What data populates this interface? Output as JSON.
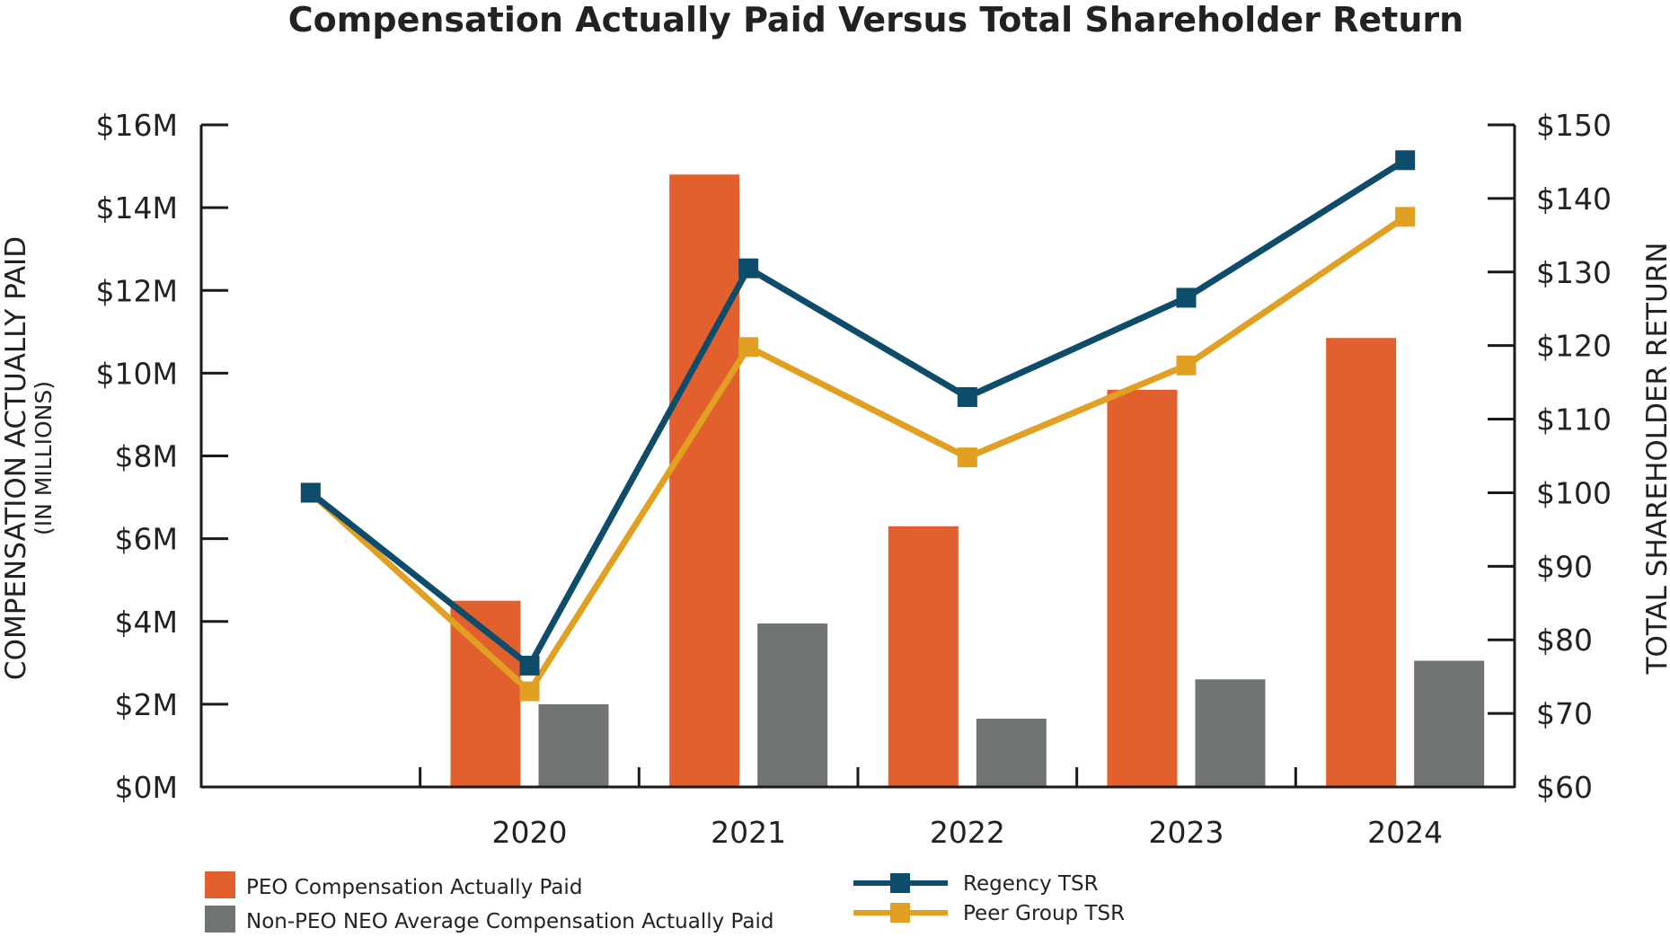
{
  "chart_data": {
    "type": "bar",
    "title": "Compensation Actually Paid Versus Total Shareholder Return",
    "x_categories": [
      "",
      "2020",
      "2021",
      "2022",
      "2023",
      "2024"
    ],
    "y_left": {
      "label": "COMPENSATION ACTUALLY PAID",
      "sublabel": "(IN MILLIONS)",
      "range": [
        0,
        16
      ],
      "ticks": [
        0,
        2,
        4,
        6,
        8,
        10,
        12,
        14,
        16
      ],
      "tick_labels": [
        "$0M",
        "$2M",
        "$4M",
        "$6M",
        "$8M",
        "$10M",
        "$12M",
        "$14M",
        "$16M"
      ]
    },
    "y_right": {
      "label": "TOTAL SHAREHOLDER RETURN",
      "range": [
        60,
        150
      ],
      "ticks": [
        60,
        70,
        80,
        90,
        100,
        110,
        120,
        130,
        140,
        150
      ],
      "tick_labels": [
        "$60",
        "$70",
        "$80",
        "$90",
        "$100",
        "$110",
        "$120",
        "$130",
        "$140",
        "$150"
      ]
    },
    "bar_series": [
      {
        "name": "PEO Compensation Actually Paid",
        "color": "#E2602D",
        "categories": [
          "2020",
          "2021",
          "2022",
          "2023",
          "2024"
        ],
        "values": [
          4.5,
          14.8,
          6.3,
          9.6,
          10.85
        ]
      },
      {
        "name": "Non-PEO NEO Average Compensation Actually Paid",
        "color": "#717474",
        "categories": [
          "2020",
          "2021",
          "2022",
          "2023",
          "2024"
        ],
        "values": [
          2.0,
          3.95,
          1.65,
          2.6,
          3.05
        ]
      }
    ],
    "line_series": [
      {
        "name": "Regency TSR",
        "color": "#0E4C6C",
        "categories": [
          "",
          "2020",
          "2021",
          "2022",
          "2023",
          "2024"
        ],
        "values": [
          100,
          76.5,
          130.5,
          113,
          126.5,
          145.2
        ]
      },
      {
        "name": "Peer Group TSR",
        "color": "#E1A021",
        "categories": [
          "",
          "2020",
          "2021",
          "2022",
          "2023",
          "2024"
        ],
        "values": [
          100,
          73,
          119.8,
          104.8,
          117.3,
          137.5
        ]
      }
    ],
    "legend_position": "bottom"
  }
}
